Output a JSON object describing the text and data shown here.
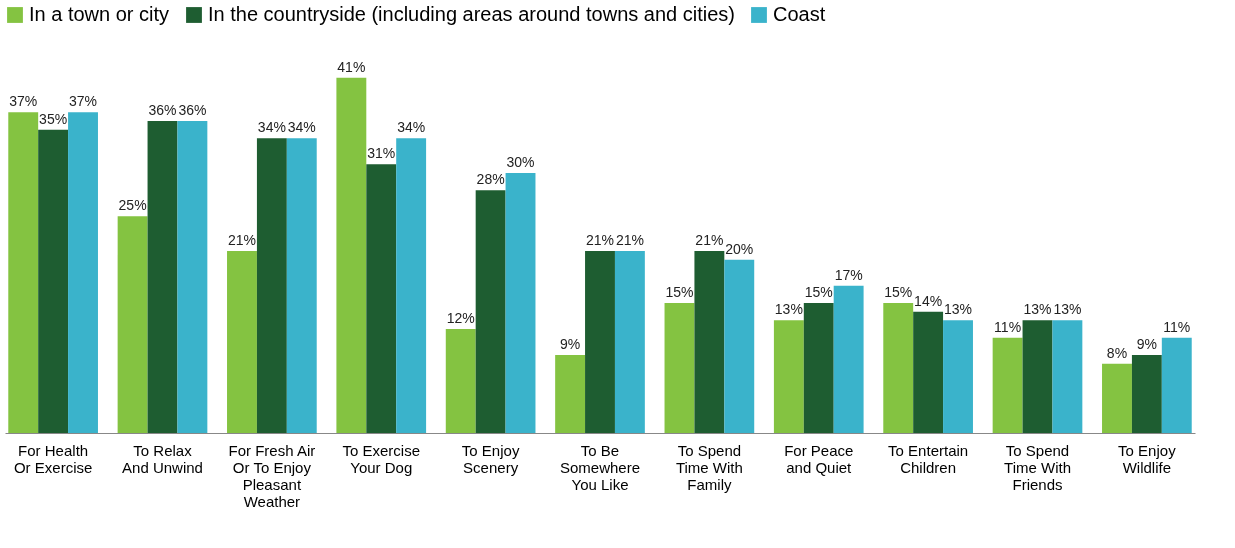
{
  "chart_data": {
    "type": "bar",
    "categories": [
      "For Health\nOr Exercise",
      "To Relax\nAnd Unwind",
      "For Fresh Air\nOr To Enjoy\nPleasant\nWeather",
      "To Exercise\nYour Dog",
      "To Enjoy\nScenery",
      "To Be\nSomewhere\nYou Like",
      "To Spend\nTime With\nFamily",
      "For Peace\nand Quiet",
      "To Entertain\nChildren",
      "To Spend\nTime With\nFriends",
      "To Enjoy\nWildlife"
    ],
    "series": [
      {
        "name": "In a town or city",
        "color": "#84c341",
        "values": [
          37,
          25,
          21,
          41,
          12,
          9,
          15,
          13,
          15,
          11,
          8
        ],
        "value_labels": [
          "37%",
          "25%",
          "21%",
          "41%",
          "12%",
          "9%",
          "15%",
          "13%",
          "15%",
          "11%",
          "8%"
        ]
      },
      {
        "name": "In the countryside (including areas around towns and cities)",
        "color": "#1e5d31",
        "values": [
          35,
          36,
          34,
          31,
          28,
          21,
          21,
          15,
          14,
          13,
          9
        ],
        "value_labels": [
          "35%",
          "36%",
          "34%",
          "31%",
          "28%",
          "21%",
          "21%",
          "15%",
          "14%",
          "13%",
          "9%"
        ]
      },
      {
        "name": "Coast",
        "color": "#3ab3cb",
        "values": [
          37,
          36,
          34,
          34,
          30,
          21,
          20,
          17,
          13,
          13,
          11
        ],
        "value_labels": [
          "37%",
          "36%",
          "34%",
          "34%",
          "30%",
          "21%",
          "20%",
          "17%",
          "13%",
          "13%",
          "11%"
        ]
      }
    ],
    "legend": "top",
    "grid": false
  }
}
